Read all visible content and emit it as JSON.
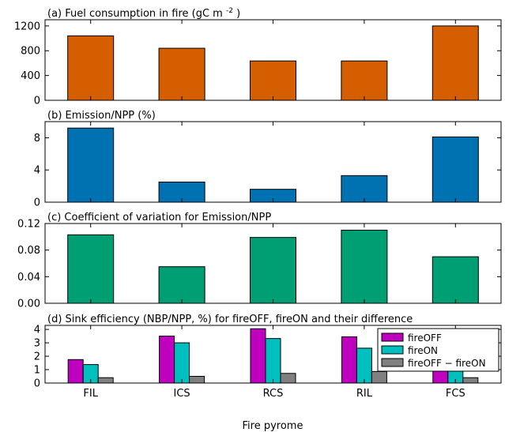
{
  "xlabel": "Fire pyrome",
  "categories": [
    "FIL",
    "ICS",
    "RCS",
    "RIL",
    "FCS"
  ],
  "chart_data": [
    {
      "type": "bar",
      "title_prefix": "(a) Fuel consumption in fire (gC m",
      "title_sup": "-2",
      "title_suffix": ")",
      "categories": [
        "FIL",
        "ICS",
        "RCS",
        "RIL",
        "FCS"
      ],
      "values": [
        1040,
        840,
        635,
        635,
        1200
      ],
      "ylim": [
        0,
        1300
      ],
      "yticks": [
        "0",
        "400",
        "800",
        "1200"
      ],
      "ytick_values": [
        0,
        400,
        800,
        1200
      ],
      "color": "#d55e00"
    },
    {
      "type": "bar",
      "title": "(b) Emission/NPP (%)",
      "categories": [
        "FIL",
        "ICS",
        "RCS",
        "RIL",
        "FCS"
      ],
      "values": [
        9.2,
        2.5,
        1.6,
        3.3,
        8.1
      ],
      "ylim": [
        0,
        10
      ],
      "yticks": [
        "0",
        "4",
        "8"
      ],
      "ytick_values": [
        0,
        4,
        8
      ],
      "color": "#0072b2"
    },
    {
      "type": "bar",
      "title": "(c) Coefficient of variation for Emission/NPP",
      "categories": [
        "FIL",
        "ICS",
        "RCS",
        "RIL",
        "FCS"
      ],
      "values": [
        0.103,
        0.055,
        0.099,
        0.11,
        0.07
      ],
      "ylim": [
        0,
        0.12
      ],
      "yticks": [
        "0.00",
        "0.04",
        "0.08",
        "0.12"
      ],
      "ytick_values": [
        0,
        0.04,
        0.08,
        0.12
      ],
      "color": "#009e73"
    },
    {
      "type": "bar",
      "title": "(d) Sink efficiency (NBP/NPP, %) for fireOFF, fireON and their difference",
      "categories": [
        "FIL",
        "ICS",
        "RCS",
        "RIL",
        "FCS"
      ],
      "ylim": [
        0,
        4.3
      ],
      "yticks": [
        "0",
        "1",
        "2",
        "3",
        "4"
      ],
      "ytick_values": [
        0,
        1,
        2,
        3,
        4
      ],
      "legend": "upper-right",
      "series": [
        {
          "name": "fireOFF",
          "values": [
            1.75,
            3.5,
            4.05,
            3.45,
            1.75
          ],
          "color": "#bf00bf"
        },
        {
          "name": "fireON",
          "values": [
            1.38,
            3.0,
            3.32,
            2.6,
            1.38
          ],
          "color": "#00bfbf"
        },
        {
          "name": "fireOFF − fireON",
          "values": [
            0.4,
            0.5,
            0.72,
            0.86,
            0.4
          ],
          "color": "#808080"
        }
      ]
    }
  ]
}
